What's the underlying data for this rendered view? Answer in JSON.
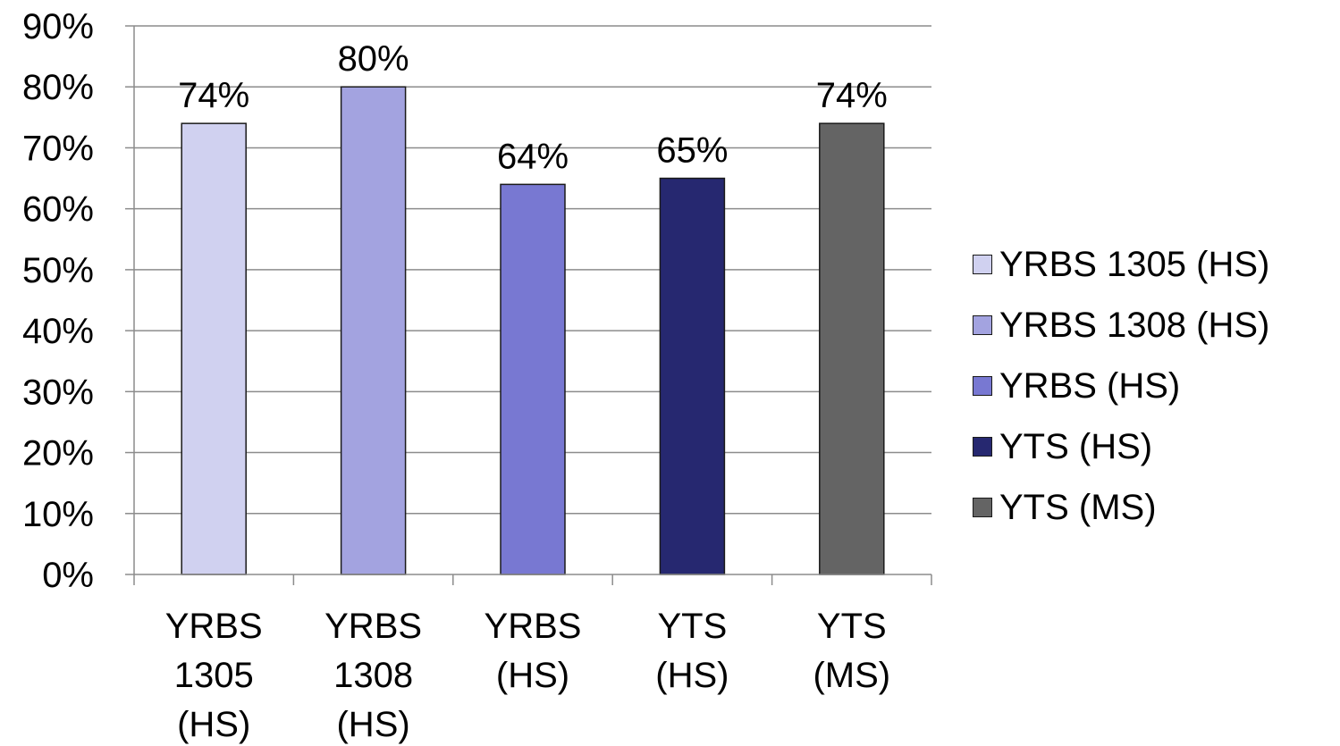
{
  "chart_data": {
    "type": "bar",
    "categories": [
      [
        "YRBS",
        "1305",
        "(HS)"
      ],
      [
        "YRBS",
        "1308",
        "(HS)"
      ],
      [
        "YRBS",
        "(HS)"
      ],
      [
        "YTS",
        "(HS)"
      ],
      [
        "YTS",
        "(MS)"
      ]
    ],
    "values": [
      74,
      80,
      64,
      65,
      74
    ],
    "data_labels": [
      "74%",
      "80%",
      "64%",
      "65%",
      "74%"
    ],
    "colors": [
      "#d0d1f0",
      "#a3a3e0",
      "#7878d2",
      "#262870",
      "#646464"
    ],
    "ylim": [
      0,
      90
    ],
    "yticks": [
      "0%",
      "10%",
      "20%",
      "30%",
      "40%",
      "50%",
      "60%",
      "70%",
      "80%",
      "90%"
    ],
    "grid": true,
    "legend_position": "right",
    "legend": [
      "YRBS 1305 (HS)",
      "YRBS 1308 (HS)",
      "YRBS (HS)",
      "YTS (HS)",
      "YTS (MS)"
    ]
  }
}
